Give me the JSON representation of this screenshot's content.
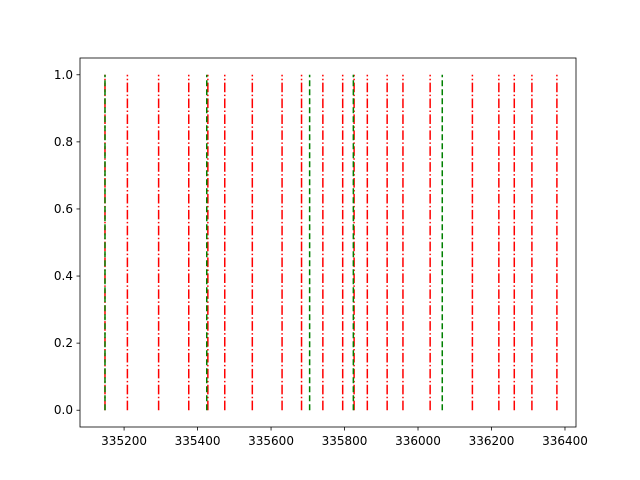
{
  "chart_data": {
    "type": "line",
    "title": "",
    "xlabel": "",
    "ylabel": "",
    "xlim": [
      335080,
      336430
    ],
    "ylim": [
      -0.05,
      1.05
    ],
    "grid": false,
    "x_ticks": [
      335200,
      335400,
      335600,
      335800,
      336000,
      336200,
      336400
    ],
    "x_tick_labels": [
      "335200",
      "335400",
      "335600",
      "335800",
      "336000",
      "336200",
      "336400"
    ],
    "y_ticks": [
      0.0,
      0.2,
      0.4,
      0.6,
      0.8,
      1.0
    ],
    "y_tick_labels": [
      "0.0",
      "0.2",
      "0.4",
      "0.6",
      "0.8",
      "1.0"
    ],
    "series": [
      {
        "color": "#ff0000",
        "linestyle": "dashdot",
        "y_range": [
          0,
          1
        ],
        "x": [
          335148,
          335209,
          335294,
          335376,
          335428,
          335474,
          335549,
          335630,
          335683,
          335741,
          335795,
          335826,
          335862,
          335916,
          335959,
          336033,
          336148,
          336220,
          336262,
          336310,
          336378
        ]
      },
      {
        "color": "#008000",
        "linestyle": "dashed",
        "y_range": [
          0,
          1
        ],
        "x": [
          335148,
          335425,
          335705,
          335824,
          336066
        ]
      }
    ]
  }
}
